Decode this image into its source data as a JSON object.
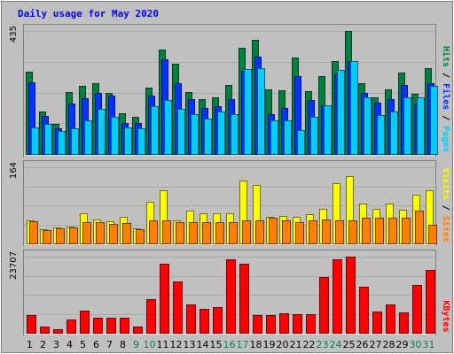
{
  "chart_data": {
    "type": "bar",
    "title": "Daily usage for May 2020",
    "categories": [
      "1",
      "2",
      "3",
      "4",
      "5",
      "6",
      "7",
      "8",
      "9",
      "10",
      "11",
      "12",
      "13",
      "14",
      "15",
      "16",
      "17",
      "18",
      "19",
      "20",
      "21",
      "22",
      "23",
      "24",
      "25",
      "26",
      "27",
      "28",
      "29",
      "30",
      "31"
    ],
    "weekend_days": [
      "9",
      "10",
      "16",
      "17",
      "23",
      "24",
      "30",
      "31"
    ],
    "panels": [
      {
        "id": "top",
        "ymax": 435,
        "ymax_label": "435",
        "side_labels": [
          "Pages",
          "Files",
          "Hits"
        ],
        "side_colors": [
          "#00ccff",
          "#0033ff",
          "#008040"
        ],
        "series": [
          {
            "name": "Hits",
            "color": "#008040",
            "values": [
              290,
              150,
              105,
              218,
              240,
              250,
              215,
              143,
              130,
              235,
              370,
              320,
              220,
              195,
              200,
              245,
              374,
              405,
              228,
              225,
              342,
              222,
              275,
              330,
              435,
              250,
              200,
              228,
              288,
              212,
              302
            ]
          },
          {
            "name": "Files",
            "color": "#0033ff",
            "values": [
              255,
              135,
              90,
              178,
              198,
              216,
              205,
              110,
              110,
              205,
              335,
              250,
              195,
              162,
              170,
              195,
              295,
              345,
              140,
              162,
              275,
              190,
              172,
              283,
              330,
              215,
              180,
              195,
              245,
              178,
              250
            ]
          },
          {
            "name": "Pages",
            "color": "#00ccff",
            "values": [
              95,
              105,
              82,
              90,
              120,
              160,
              130,
              95,
              92,
              170,
              190,
              160,
              140,
              125,
              150,
              140,
              300,
              305,
              120,
              120,
              85,
              130,
              172,
              298,
              330,
              200,
              138,
              150,
              200,
              200,
              240
            ]
          }
        ]
      },
      {
        "id": "mid",
        "ymax": 164,
        "ymax_label": "164",
        "side_labels": [
          "Sites",
          "Visits"
        ],
        "side_colors": [
          "#ff8000",
          "#ffff00"
        ],
        "series": [
          {
            "name": "Visits",
            "color": "#ffff00",
            "values": [
              50,
              30,
              35,
              37,
              65,
              52,
              48,
              58,
              32,
              90,
              115,
              50,
              70,
              65,
              65,
              65,
              135,
              125,
              58,
              60,
              58,
              62,
              75,
              130,
              145,
              85,
              75,
              85,
              72,
              105,
              115
            ]
          },
          {
            "name": "Sites",
            "color": "#ff8000",
            "values": [
              48,
              28,
              32,
              35,
              45,
              45,
              42,
              44,
              30,
              50,
              50,
              45,
              45,
              45,
              45,
              45,
              50,
              50,
              55,
              50,
              45,
              50,
              52,
              50,
              50,
              55,
              55,
              55,
              55,
              70,
              40
            ]
          }
        ]
      },
      {
        "id": "bot",
        "ymax": 23707,
        "ymax_label": "23707",
        "side_labels": [
          "KBytes"
        ],
        "side_colors": [
          "#ff0000"
        ],
        "series": [
          {
            "name": "KBytes",
            "color": "#ff0000",
            "values": [
              5500,
              2000,
              1200,
              4200,
              6800,
              4700,
              4700,
              4700,
              2000,
              10400,
              21500,
              16000,
              8700,
              7500,
              8100,
              22800,
              21500,
              5500,
              5500,
              6200,
              5700,
              5700,
              17500,
              22900,
              23707,
              14300,
              6700,
              8800,
              6300,
              14800,
              19500
            ]
          }
        ]
      }
    ]
  }
}
